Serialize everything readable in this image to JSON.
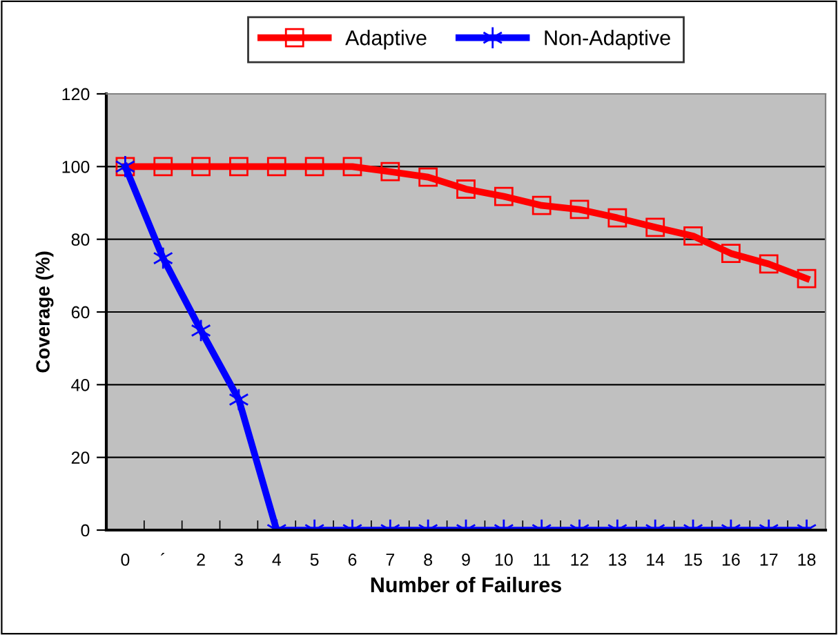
{
  "chart_data": {
    "type": "line",
    "xlabel": "Number of Failures",
    "ylabel": "Coverage (%)",
    "categories": [
      "0",
      "´",
      "2",
      "3",
      "4",
      "5",
      "6",
      "7",
      "8",
      "9",
      "10",
      "11",
      "12",
      "13",
      "14",
      "15",
      "16",
      "17",
      "18"
    ],
    "series": [
      {
        "name": "Adaptive",
        "color": "#ff0000",
        "marker": "square",
        "values": [
          100,
          100,
          100,
          100,
          100,
          100,
          100,
          98.6,
          97.1,
          93.8,
          91.8,
          89.3,
          88.2,
          85.9,
          83.3,
          80.9,
          76.1,
          73.2,
          69.2
        ]
      },
      {
        "name": "Non-Adaptive",
        "color": "#0000ff",
        "marker": "cross",
        "values": [
          100,
          74.8,
          54.9,
          35.9,
          0,
          0,
          0,
          0,
          0,
          0,
          0,
          0,
          0,
          0,
          0,
          0,
          0,
          0,
          0
        ]
      }
    ],
    "ylim": [
      0,
      120
    ],
    "yticks": [
      0,
      20,
      40,
      60,
      80,
      100,
      120
    ],
    "grid": "y",
    "legend": "top",
    "line_style": "solid"
  }
}
